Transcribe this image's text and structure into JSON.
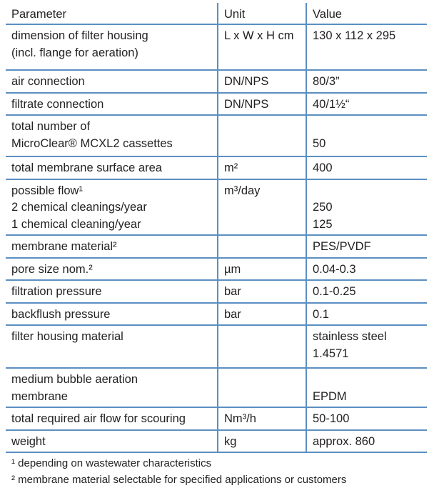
{
  "headers": [
    "Parameter",
    "Unit",
    "Value"
  ],
  "rows": [
    {
      "param": [
        "dimension of filter housing",
        "(incl. flange for aeration)"
      ],
      "unit": [
        "L x W x H cm"
      ],
      "value": [
        "130 x 112 x 295"
      ]
    },
    {
      "param": [
        "air connection"
      ],
      "unit": [
        "DN/NPS"
      ],
      "value": [
        "80/3”"
      ]
    },
    {
      "param": [
        "filtrate connection"
      ],
      "unit": [
        "DN/NPS"
      ],
      "value": [
        "40/1½“"
      ]
    },
    {
      "param": [
        "total number of",
        "MicroClear® MCXL2 cassettes"
      ],
      "unit": [
        ""
      ],
      "value": [
        "",
        "50"
      ]
    },
    {
      "param": [
        "total membrane surface area"
      ],
      "unit": [
        "m²"
      ],
      "value": [
        "400"
      ]
    },
    {
      "param": [
        "possible flow¹",
        "2 chemical cleanings/year",
        "1 chemical cleaning/year"
      ],
      "unit": [
        "m³/day"
      ],
      "value": [
        "",
        "250",
        "125"
      ]
    },
    {
      "param": [
        "membrane material²"
      ],
      "unit": [
        ""
      ],
      "value": [
        "PES/PVDF"
      ]
    },
    {
      "param": [
        "pore size nom.²"
      ],
      "unit": [
        "µm"
      ],
      "value": [
        "0.04-0.3"
      ]
    },
    {
      "param": [
        "filtration pressure"
      ],
      "unit": [
        "bar"
      ],
      "value": [
        "0.1-0.25"
      ]
    },
    {
      "param": [
        "backflush pressure"
      ],
      "unit": [
        "bar"
      ],
      "value": [
        "0.1"
      ]
    },
    {
      "param": [
        "filter housing material"
      ],
      "unit": [
        ""
      ],
      "value": [
        "stainless steel",
        "1.4571"
      ]
    },
    {
      "param": [
        "medium bubble aeration",
        "membrane"
      ],
      "unit": [
        ""
      ],
      "value": [
        "",
        "EPDM"
      ]
    },
    {
      "param": [
        "total required air flow for scouring"
      ],
      "unit": [
        "Nm³/h"
      ],
      "value": [
        "50-100"
      ]
    },
    {
      "param": [
        "weight"
      ],
      "unit": [
        "kg"
      ],
      "value": [
        "approx. 860"
      ]
    }
  ],
  "footnotes": [
    "¹ depending on wastewater characteristics",
    "² membrane material selectable for specified applications or customers"
  ],
  "colors": {
    "rule": "#5b8fc2",
    "text": "#222222"
  }
}
